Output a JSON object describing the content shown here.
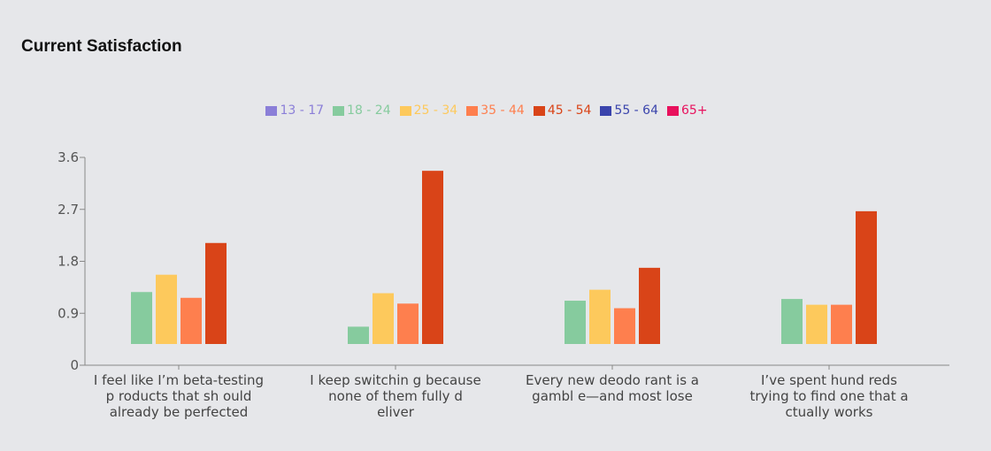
{
  "chart_data": {
    "type": "bar",
    "title": "Current Satisfaction",
    "xlabel": "",
    "ylabel": "",
    "ylim": [
      0,
      3.6
    ],
    "yticks": [
      "0",
      "0.9",
      "1.8",
      "2.7",
      "3.6"
    ],
    "grid": false,
    "legend_position": "top-center",
    "categories": [
      [
        "I feel like I’m beta-testing",
        "p roducts that sh ould",
        "already be perfected"
      ],
      [
        "I keep switchin g because",
        "none of them fully d",
        "eliver"
      ],
      [
        "Every new deodo rant is a",
        "gambl e—and most lose"
      ],
      [
        "I’ve spent hund reds",
        "trying to find one that a",
        "ctually works"
      ]
    ],
    "series": [
      {
        "name": "13 - 17",
        "color": "#8b7fd8",
        "values": [
          null,
          null,
          null,
          null
        ]
      },
      {
        "name": "18 - 24",
        "color": "#86cb9e",
        "values": [
          0.9,
          0.3,
          0.75,
          0.78
        ]
      },
      {
        "name": "25 - 34",
        "color": "#fdc95c",
        "values": [
          1.2,
          0.88,
          0.94,
          0.68
        ]
      },
      {
        "name": "35 - 44",
        "color": "#fe7f4e",
        "values": [
          0.8,
          0.7,
          0.62,
          0.68
        ]
      },
      {
        "name": "45 - 54",
        "color": "#d94418",
        "values": [
          1.75,
          3.0,
          1.32,
          2.3
        ]
      },
      {
        "name": "55 - 64",
        "color": "#3a44ac",
        "values": [
          null,
          null,
          null,
          null
        ]
      },
      {
        "name": "65+",
        "color": "#e8115d",
        "values": [
          null,
          null,
          null,
          null
        ]
      }
    ]
  }
}
